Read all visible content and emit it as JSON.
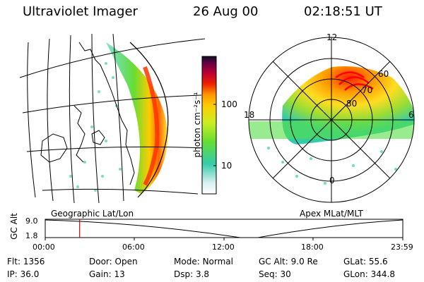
{
  "header": {
    "instrument": "Ultraviolet Imager",
    "date": "26 Aug 00",
    "time": "02:18:51 UT"
  },
  "colors": {
    "aurora_peak": "#ff0000",
    "aurora_mid": "#ffcc00",
    "aurora_low": "#33cc66",
    "cursor": "#cc0000"
  },
  "colorbar": {
    "label": "photon cm⁻²s⁻¹",
    "ticks": [
      {
        "label": "100",
        "value": 100
      },
      {
        "label": "10",
        "value": 10
      }
    ],
    "scale": "log"
  },
  "left_panel": {
    "caption": "Geographic Lat/Lon"
  },
  "right_panel": {
    "caption": "Apex MLat/MLT",
    "mlt_labels": {
      "top": "12",
      "left": "18",
      "right": "6",
      "bottom": "0"
    },
    "lat_labels": [
      "60",
      "70",
      "80"
    ]
  },
  "timeline": {
    "ylabel": "GC Alt",
    "ymax": "9.0",
    "ymin": "1.8",
    "ticks": [
      "00:00",
      "06:00",
      "12:00",
      "18:00",
      "23:59"
    ],
    "cursor_hours": 2.31
  },
  "info": {
    "flt_label": "Flt:",
    "flt": "1356",
    "ip_label": "IP:",
    "ip": "36.0",
    "door_label": "Door:",
    "door": "Open",
    "gain_label": "Gain:",
    "gain": "13",
    "mode_label": "Mode:",
    "mode": "Normal",
    "dsp_label": "Dsp:",
    "dsp": "3.8",
    "gcalt_label": "GC Alt:",
    "gcalt": "9.0 Re",
    "seq_label": "Seq:",
    "seq": "30",
    "glat_label": "GLat:",
    "glat": "55.6",
    "glon_label": "GLon:",
    "glon": "344.8"
  }
}
